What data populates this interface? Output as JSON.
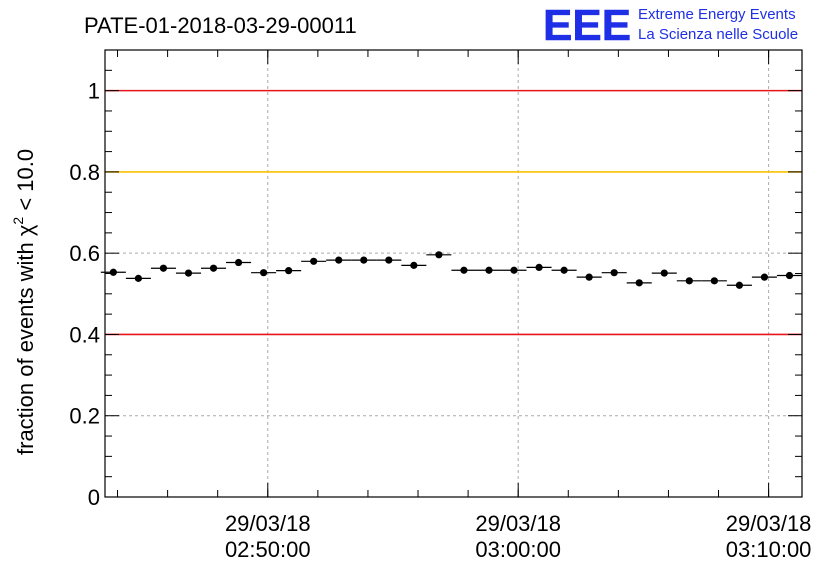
{
  "chart_data": {
    "type": "scatter",
    "title": "PATE-01-2018-03-29-00011",
    "ylabel": "fraction of events with χ² < 10.0",
    "ylabel_main": "fraction of events with χ",
    "ylabel_sup": "2",
    "ylabel_tail": " < 10.0",
    "xlabel": "",
    "ylim": [
      0,
      1.1
    ],
    "xlim": [
      "02:43:30",
      "03:11:20"
    ],
    "date": "29/03/18",
    "x_ticks": [
      {
        "date": "29/03/18",
        "time": "02:50:00"
      },
      {
        "date": "29/03/18",
        "time": "03:00:00"
      },
      {
        "date": "29/03/18",
        "time": "03:10:00"
      }
    ],
    "y_ticks": [
      "0",
      "0.2",
      "0.4",
      "0.6",
      "0.8",
      "1"
    ],
    "grid": true,
    "reference_lines": [
      {
        "y": 1.0,
        "color": "#e8141c"
      },
      {
        "y": 0.8,
        "color": "#ffc000"
      },
      {
        "y": 0.4,
        "color": "#e8141c"
      }
    ],
    "series": [
      {
        "x": [
          "02:43:50",
          "02:44:50",
          "02:45:50",
          "02:46:50",
          "02:47:50",
          "02:48:50",
          "02:49:50",
          "02:50:50",
          "02:51:50",
          "02:52:50",
          "02:53:50",
          "02:54:50",
          "02:55:50",
          "02:56:50",
          "02:57:50",
          "02:58:50",
          "02:59:50",
          "03:00:50",
          "03:01:50",
          "03:02:50",
          "03:03:50",
          "03:04:50",
          "03:05:50",
          "03:06:50",
          "03:07:50",
          "03:08:50",
          "03:09:50",
          "03:10:50"
        ],
        "y": [
          0.553,
          0.538,
          0.563,
          0.551,
          0.563,
          0.577,
          0.552,
          0.557,
          0.58,
          0.583,
          0.583,
          0.583,
          0.57,
          0.596,
          0.558,
          0.558,
          0.558,
          0.565,
          0.558,
          0.541,
          0.552,
          0.527,
          0.551,
          0.532,
          0.532,
          0.521,
          0.541,
          0.545
        ],
        "y_err": 0.006,
        "x_halfwidth_s": 30,
        "color": "#000000"
      }
    ]
  },
  "logo": {
    "mark": "EEE",
    "line1": "Extreme Energy Events",
    "line2": "La Scienza nelle Scuole",
    "color": "#1f2fe6"
  }
}
